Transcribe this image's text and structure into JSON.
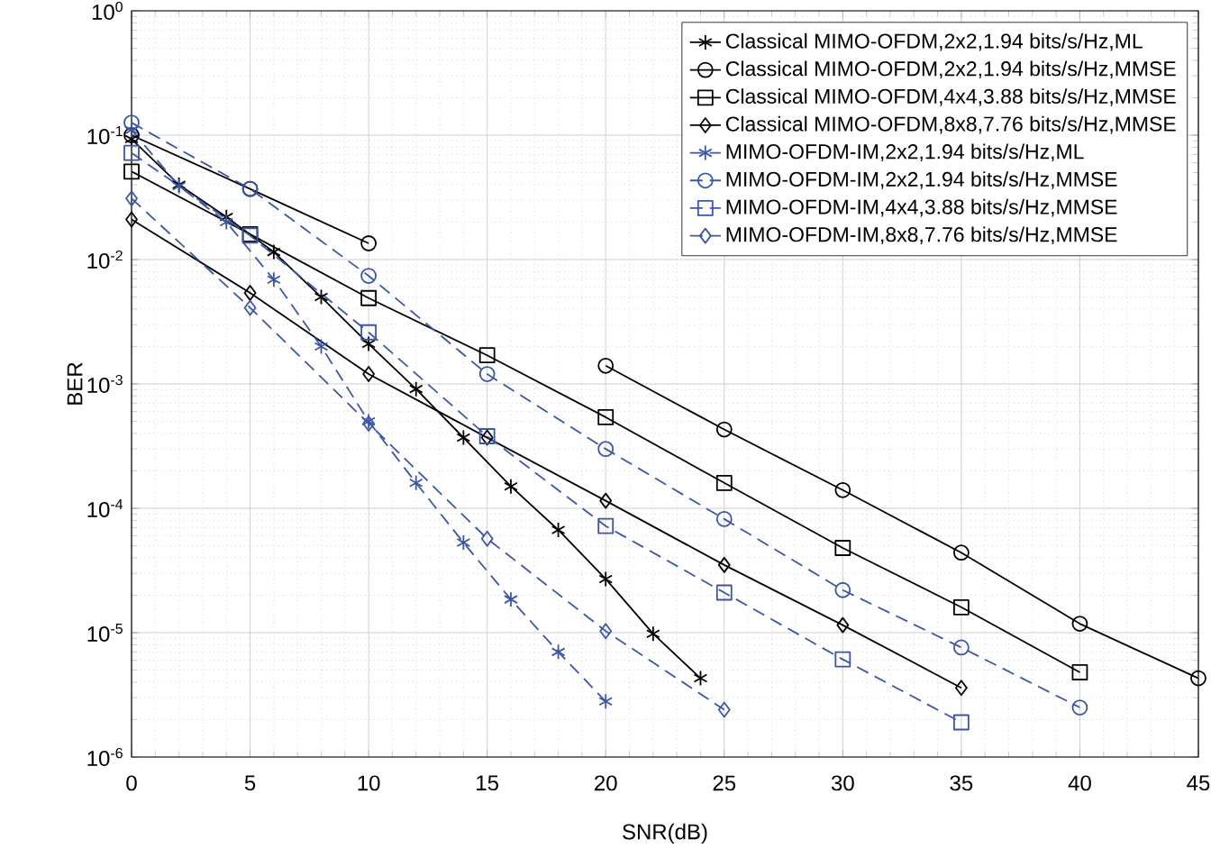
{
  "chart_data": {
    "type": "line",
    "xlabel": "SNR(dB)",
    "ylabel": "BER",
    "log": "y",
    "grid": true,
    "legend": "top right",
    "xlim": [
      0,
      45
    ],
    "xticks": [
      0,
      5,
      10,
      15,
      20,
      25,
      30,
      35,
      40,
      45
    ],
    "ylim": [
      1e-06,
      1
    ],
    "yticks": [
      {
        "value": 1e-06,
        "label": "10$^{-6}$"
      },
      {
        "value": 1e-05,
        "label": "10$^{-5}$"
      },
      {
        "value": 0.0001,
        "label": "10$^{-4}$"
      },
      {
        "value": 0.001,
        "label": "10$^{-3}$"
      },
      {
        "value": 0.01,
        "label": "10$^{-2}$"
      },
      {
        "value": 0.1,
        "label": "10$^{-1}$"
      },
      {
        "value": 1,
        "label": "10$^{0}$"
      }
    ],
    "series": [
      {
        "name": "Classical MIMO-OFDM,2x2,1.94 bits/s/Hz,ML",
        "color": "#000000",
        "marker": "cross",
        "line_style": "solid",
        "x": [
          0,
          2,
          4,
          6,
          8,
          10,
          12,
          14,
          16,
          18,
          20,
          22,
          24
        ],
        "values": [
          0.093,
          0.04,
          0.022,
          0.0115,
          0.005,
          0.0021,
          0.00091,
          0.00037,
          0.00015,
          6.7e-05,
          2.7e-05,
          9.8e-06,
          4.3e-06
        ]
      },
      {
        "name": "Classical MIMO-OFDM,2x2,1.94 bits/s/Hz,MMSE",
        "color": "#000000",
        "marker": "circle",
        "line_style": "solid",
        "x": [
          0,
          5,
          10,
          15,
          20,
          25,
          30,
          35,
          40,
          45
        ],
        "values": [
          0.1,
          0.037,
          0.0135,
          null,
          0.0014,
          0.00043,
          0.00014,
          4.4e-05,
          1.18e-05,
          4.3e-06
        ]
      },
      {
        "name": "Classical MIMO-OFDM,4x4,3.88 bits/s/Hz,MMSE",
        "color": "#000000",
        "marker": "square",
        "line_style": "solid",
        "x": [
          0,
          5,
          10,
          15,
          20,
          25,
          30,
          35,
          40
        ],
        "values": [
          0.051,
          0.016,
          0.0049,
          0.0017,
          0.00054,
          0.00016,
          4.8e-05,
          1.6e-05,
          4.8e-06
        ]
      },
      {
        "name": "Classical MIMO-OFDM,8x8,7.76 bits/s/Hz,MMSE",
        "color": "#000000",
        "marker": "diamond",
        "line_style": "solid",
        "x": [
          0,
          5,
          10,
          15,
          20,
          25,
          30,
          35
        ],
        "values": [
          0.021,
          0.0054,
          0.0012,
          0.00037,
          0.000115,
          3.5e-05,
          1.15e-05,
          3.6e-06
        ]
      },
      {
        "name": "MIMO-OFDM-IM,2x2,1.94 bits/s/Hz,ML",
        "color": "#3b56a6",
        "marker": "cross",
        "line_style": "dashed",
        "x": [
          0,
          2,
          4,
          6,
          8,
          10,
          12,
          14,
          16,
          18,
          20
        ],
        "values": [
          0.11,
          0.039,
          0.02,
          0.0069,
          0.002,
          0.0005,
          0.00016,
          5.3e-05,
          1.85e-05,
          7e-06,
          2.8e-06
        ]
      },
      {
        "name": "MIMO-OFDM-IM,2x2,1.94 bits/s/Hz,MMSE",
        "color": "#3b56a6",
        "marker": "circle",
        "line_style": "dashed",
        "x": [
          0,
          5,
          10,
          15,
          20,
          25,
          30,
          35,
          40
        ],
        "values": [
          0.126,
          0.037,
          0.0074,
          0.0012,
          0.0003,
          8.2e-05,
          2.2e-05,
          7.6e-06,
          2.5e-06
        ]
      },
      {
        "name": "MIMO-OFDM-IM,4x4,3.88 bits/s/Hz,MMSE",
        "color": "#3b56a6",
        "marker": "square",
        "line_style": "dashed",
        "x": [
          0,
          5,
          10,
          15,
          20,
          25,
          30,
          35
        ],
        "values": [
          0.072,
          0.0156,
          0.0026,
          0.00038,
          7.2e-05,
          2.1e-05,
          6.1e-06,
          1.9e-06
        ]
      },
      {
        "name": "MIMO-OFDM-IM,8x8,7.76 bits/s/Hz,MMSE",
        "color": "#3b56a6",
        "marker": "diamond",
        "line_style": "dashed",
        "x": [
          0,
          5,
          10,
          15,
          20,
          25
        ],
        "values": [
          0.031,
          0.0041,
          0.00048,
          5.7e-05,
          1.03e-05,
          2.4e-06
        ]
      }
    ]
  }
}
